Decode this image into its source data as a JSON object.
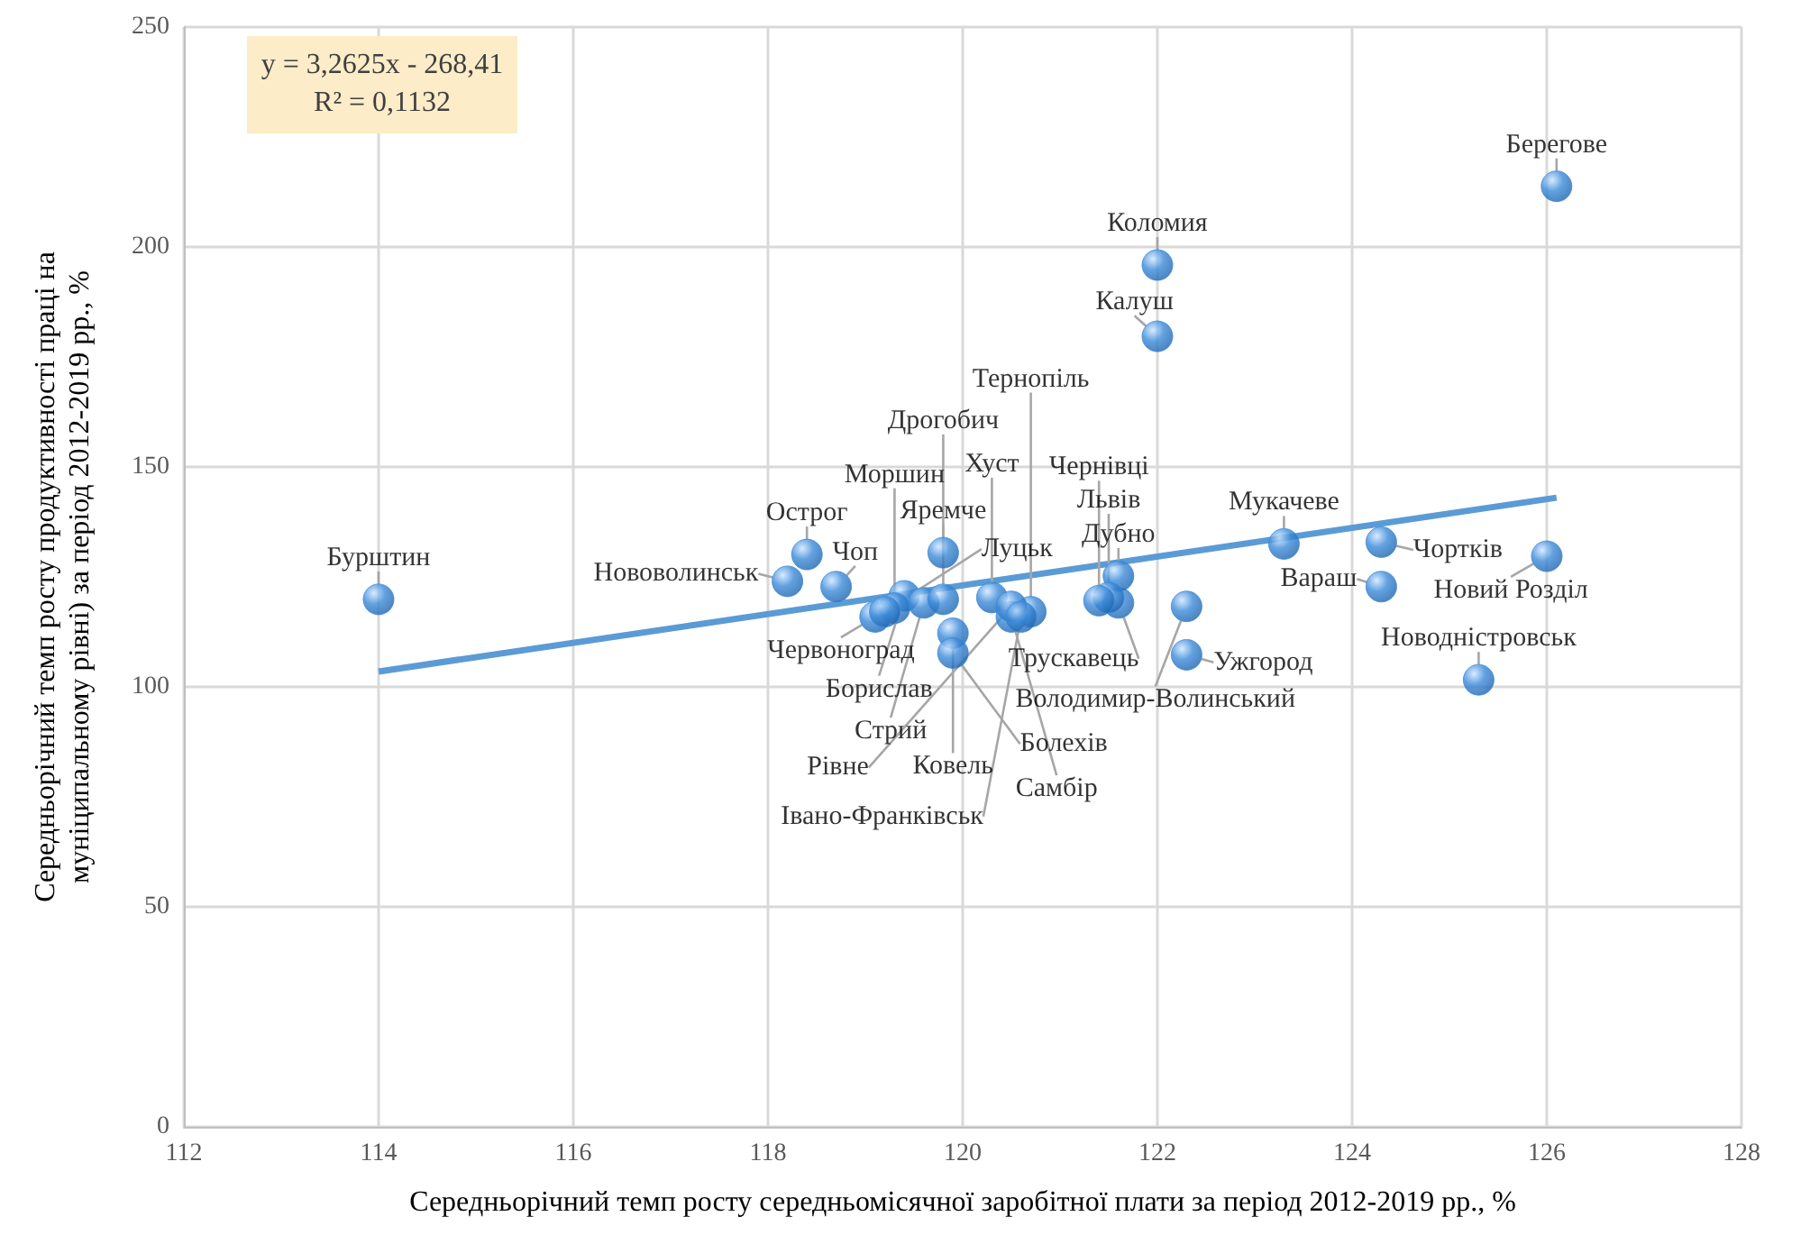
{
  "chart_data": {
    "type": "scatter",
    "xlabel": "Середньорічний темп росту середньомісячної заробітної плати за період 2012-2019 рр., %",
    "ylabel": "Середньорічний темп росту продуктивності праці на муніципальному рівні) за період 2012-2019 рр., %",
    "xlim": [
      112,
      128
    ],
    "xticks": [
      112,
      114,
      116,
      118,
      120,
      122,
      124,
      126,
      128
    ],
    "ylim": [
      0,
      250
    ],
    "yticks": [
      0,
      50,
      100,
      150,
      200,
      250
    ],
    "grid": true,
    "marker": "circle",
    "annotations": [
      "y = 3,2625x - 268,41",
      "R² = 0,1132"
    ],
    "series": [
      {
        "color": "#3b8ad9",
        "x": [
          114.0,
          126.1,
          122.0,
          122.0,
          124.3,
          123.3,
          124.3,
          126.0,
          125.3,
          121.6,
          122.3,
          121.6,
          121.5,
          121.4,
          122.3,
          118.4,
          118.2,
          118.7,
          119.8,
          119.1,
          119.4,
          119.3,
          119.6,
          119.8,
          119.2,
          119.9,
          119.9,
          120.3,
          120.5,
          120.7,
          120.5,
          120.6
        ],
        "values": [
          119.9,
          213.8,
          195.9,
          179.7,
          132.9,
          132.5,
          122.8,
          129.7,
          101.6,
          119.1,
          118.3,
          125.2,
          120.3,
          119.6,
          107.3,
          130.1,
          124.0,
          122.8,
          130.5,
          115.9,
          120.7,
          117.9,
          119.1,
          119.9,
          117.1,
          112.2,
          107.7,
          120.3,
          115.9,
          117.1,
          118.3,
          115.9
        ],
        "value_labels": [
          "Бурштин",
          "Берегове",
          "Коломия",
          "Калуш",
          "Чортків",
          "Мукачеве",
          "Вараш",
          "Новий Розділ",
          "Новодністровськ",
          "Трускавець",
          "Володимир-Волинський",
          "Дубно",
          "Львів",
          "Чернівці",
          "Ужгород",
          "Острог",
          "Нововолинськ",
          "Чоп",
          "Яремче",
          "Червоноград",
          "Борислав",
          "Моршин",
          "Стрий",
          "Дрогобич",
          "Луцьк",
          "Ковель",
          "Болехів",
          "Хуст",
          "Самбір",
          "Тернопіль",
          "Рівне",
          "Івано-Франківськ"
        ]
      },
      {
        "type": "line",
        "color": "#5b9bd5",
        "marker": "none",
        "x": [
          114.0,
          126.1
        ],
        "values": [
          103.5,
          143.0
        ]
      }
    ]
  }
}
